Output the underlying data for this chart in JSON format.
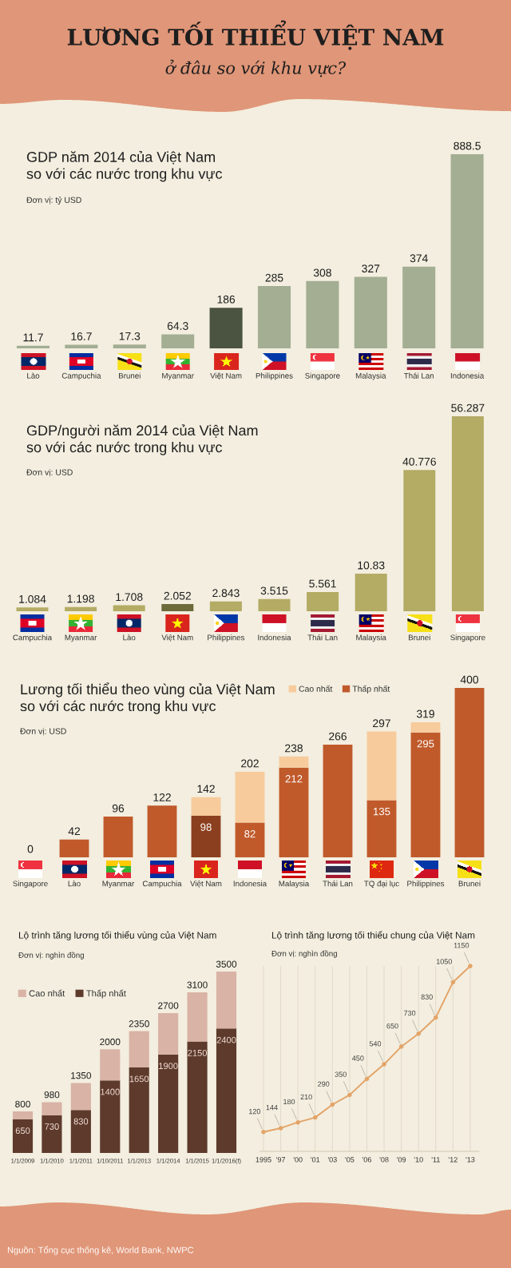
{
  "chart_data": [
    {
      "type": "other",
      "title": "LƯƠNG TỐI THIỂU VIỆT NAM",
      "subtitle": "ở đâu so với khu vực?"
    },
    {
      "type": "bar",
      "title": "GDP năm 2014 của Việt Nam\nso với các nước trong khu vực",
      "subtitle": "Đơn vị: tỷ USD",
      "categories": [
        "Lào",
        "Campuchia",
        "Brunei",
        "Myanmar",
        "Việt Nam",
        "Philippines",
        "Singapore",
        "Malaysia",
        "Thái Lan",
        "Indonesia"
      ],
      "values": [
        11.7,
        16.7,
        17.3,
        64.3,
        186,
        285,
        308,
        327,
        374,
        888.5
      ],
      "colors": [
        "#a3ae93",
        "#a3ae93",
        "#a3ae93",
        "#a3ae93",
        "#4b5440",
        "#a3ae93",
        "#a3ae93",
        "#a3ae93",
        "#a3ae93",
        "#a3ae93"
      ],
      "data_labels": true
    },
    {
      "type": "bar",
      "title": "GDP/người năm 2014 của Việt Nam\nso với các nước trong khu vực",
      "subtitle": "Đơn vị: USD",
      "categories": [
        "Campuchia",
        "Myanmar",
        "Lào",
        "Việt Nam",
        "Philippines",
        "Indonesia",
        "Thái Lan",
        "Malaysia",
        "Brunei",
        "Singapore"
      ],
      "values": [
        1.084,
        1.198,
        1.708,
        2.052,
        2.843,
        3.515,
        5.561,
        10.83,
        40.776,
        56.287
      ],
      "colors": [
        "#b4ab64",
        "#b4ab64",
        "#b4ab64",
        "#6d6a3b",
        "#b4ab64",
        "#b4ab64",
        "#b4ab64",
        "#b4ab64",
        "#b4ab64",
        "#b4ab64"
      ],
      "data_labels": true
    },
    {
      "type": "bar",
      "stacked": true,
      "title": "Lương tối thiểu theo vùng của Việt Nam\nso với các nước trong khu vực",
      "subtitle": "Đơn vị: USD",
      "categories": [
        "Singapore",
        "Lào",
        "Myanmar",
        "Campuchia",
        "Việt Nam",
        "Indonesia",
        "Malaysia",
        "Thái Lan",
        "TQ đại lục",
        "Philippines",
        "Brunei"
      ],
      "series": [
        {
          "name": "Thấp nhất",
          "color": "#c05a2b",
          "colors": [
            "#c05a2b",
            "#c05a2b",
            "#c05a2b",
            "#c05a2b",
            "#8c3f1e",
            "#c05a2b",
            "#c05a2b",
            "#c05a2b",
            "#c05a2b",
            "#c05a2b",
            "#c05a2b"
          ],
          "values": [
            0,
            42,
            96,
            122,
            98,
            82,
            212,
            266,
            135,
            295,
            400
          ],
          "value_labels": [
            null,
            null,
            null,
            null,
            "98",
            "82",
            "212",
            null,
            "135",
            "295",
            null
          ]
        },
        {
          "name": "Cao nhất",
          "color": "#f7cb9c",
          "values": [
            null,
            null,
            null,
            null,
            44,
            120,
            26,
            null,
            162,
            24,
            null
          ]
        }
      ],
      "totals": [
        "0",
        "42",
        "96",
        "122",
        "142",
        "202",
        "238",
        "266",
        "297",
        "319",
        "400"
      ],
      "legend": "top right"
    },
    {
      "type": "bar",
      "stacked": true,
      "title": "Lộ trình tăng lương tối thiểu vùng của Việt Nam",
      "subtitle": "Đơn vị: nghìn đồng",
      "categories": [
        "1/1/2009",
        "1/1/2010",
        "1/1/2011",
        "1/10/2011",
        "1/1/2013",
        "1/1/2014",
        "1/1/2015",
        "1/1/2016(f)"
      ],
      "series": [
        {
          "name": "Thấp nhất",
          "color": "#5d3a2b",
          "values": [
            650,
            730,
            830,
            1400,
            1650,
            1900,
            2150,
            2400
          ],
          "value_labels": [
            "650",
            "730",
            "830",
            "1400",
            "1650",
            "1900",
            "2150",
            "2400"
          ]
        },
        {
          "name": "Cao nhất",
          "color": "#d9b3a6",
          "values": [
            150,
            250,
            520,
            600,
            700,
            800,
            950,
            1100
          ]
        }
      ],
      "totals": [
        "800",
        "980",
        "1350",
        "2000",
        "2350",
        "2700",
        "3100",
        "3500"
      ],
      "legend": "top left"
    },
    {
      "type": "line",
      "title": "Lộ trình tăng lương tối thiểu chung của Việt Nam",
      "subtitle": "Đơn vị: nghìn đồng",
      "categories": [
        "1995",
        "'97",
        "'00",
        "'01",
        "'03",
        "'05",
        "'06",
        "'08",
        "'09",
        "'10",
        "'11",
        "'12",
        "'13"
      ],
      "series": [
        {
          "color": "#e3a468",
          "values": [
            120,
            144,
            180,
            210,
            290,
            350,
            450,
            540,
            650,
            730,
            830,
            1050,
            1150
          ]
        }
      ],
      "marker": "circle",
      "grid": "x",
      "data_labels": true
    },
    {
      "type": "other",
      "annotations": [
        "Nguồn: Tổng cục thống kê, World Bank, NWPC"
      ]
    }
  ]
}
